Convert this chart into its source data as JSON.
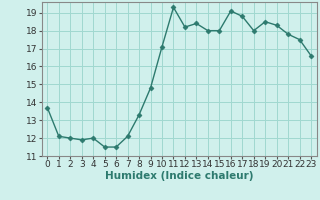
{
  "x": [
    0,
    1,
    2,
    3,
    4,
    5,
    6,
    7,
    8,
    9,
    10,
    11,
    12,
    13,
    14,
    15,
    16,
    17,
    18,
    19,
    20,
    21,
    22,
    23
  ],
  "y": [
    13.7,
    12.1,
    12.0,
    11.9,
    12.0,
    11.5,
    11.5,
    12.1,
    13.3,
    14.8,
    17.1,
    19.3,
    18.2,
    18.4,
    18.0,
    18.0,
    19.1,
    18.8,
    18.0,
    18.5,
    18.3,
    17.8,
    17.5,
    16.6
  ],
  "line_color": "#2d7a6e",
  "marker": "D",
  "marker_size": 2.5,
  "bg_color": "#d0f0ec",
  "grid_color": "#a0d8d0",
  "xlabel": "Humidex (Indice chaleur)",
  "xlim": [
    -0.5,
    23.5
  ],
  "ylim": [
    11,
    19.6
  ],
  "yticks": [
    11,
    12,
    13,
    14,
    15,
    16,
    17,
    18,
    19
  ],
  "xticks": [
    0,
    1,
    2,
    3,
    4,
    5,
    6,
    7,
    8,
    9,
    10,
    11,
    12,
    13,
    14,
    15,
    16,
    17,
    18,
    19,
    20,
    21,
    22,
    23
  ],
  "font_size": 6.5,
  "xlabel_fontsize": 7.5,
  "linewidth": 1.0
}
